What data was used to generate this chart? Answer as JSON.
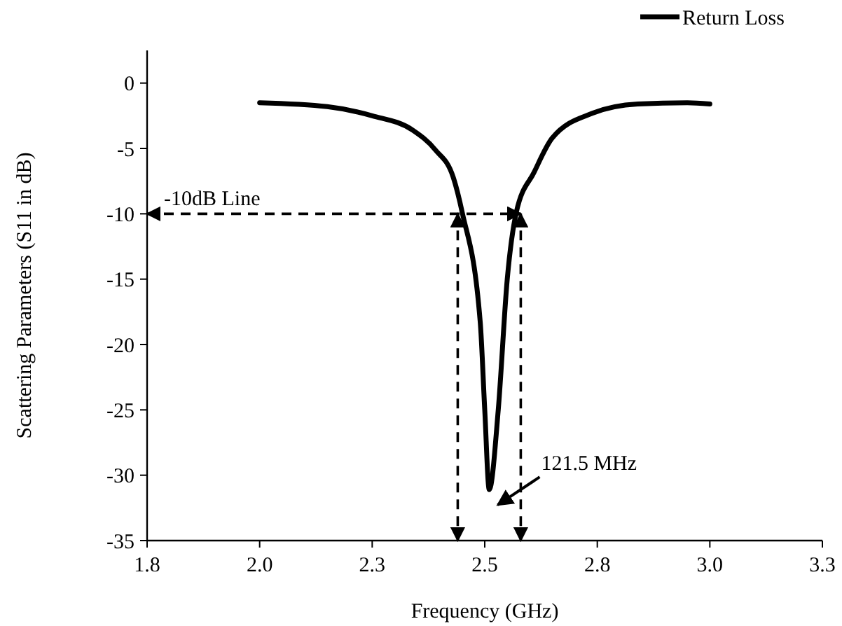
{
  "chart_data": {
    "type": "line",
    "xlabel": "Frequency (GHz)",
    "ylabel": "Scattering Parameters (S11 in dB)",
    "xlim": [
      1.75,
      3.25
    ],
    "xticks": [
      {
        "value": 1.75,
        "label": "1.8"
      },
      {
        "value": 2.0,
        "label": "2.0"
      },
      {
        "value": 2.25,
        "label": "2.3"
      },
      {
        "value": 2.5,
        "label": "2.5"
      },
      {
        "value": 2.75,
        "label": "2.8"
      },
      {
        "value": 3.0,
        "label": "3.0"
      },
      {
        "value": 3.25,
        "label": "3.3"
      }
    ],
    "ylim": [
      -35,
      2.5
    ],
    "yticks": [
      0,
      -5,
      -10,
      -15,
      -20,
      -25,
      -30,
      -35
    ],
    "series": [
      {
        "name": "Return Loss",
        "color": "#000000",
        "x": [
          2.0,
          2.15,
          2.25,
          2.34,
          2.39,
          2.43,
          2.45,
          2.49,
          2.5,
          2.51,
          2.53,
          2.55,
          2.57,
          2.61,
          2.65,
          2.74,
          2.84,
          2.95,
          3.0
        ],
        "values": [
          -1.5,
          -1.8,
          -2.5,
          -3.6,
          -5.1,
          -7.2,
          -9.9,
          -18.3,
          -25.0,
          -31.1,
          -25.0,
          -15.0,
          -9.9,
          -6.8,
          -4.2,
          -2.3,
          -1.6,
          -1.5,
          -1.6
        ]
      }
    ],
    "ref_lines": [
      {
        "axis": "y",
        "value": -10,
        "label": "-10dB Line",
        "line_style": "dashed",
        "color": "#000000"
      },
      {
        "axis": "x",
        "value": 2.44,
        "line_style": "dashed",
        "color": "#000000"
      },
      {
        "axis": "x",
        "value": 2.58,
        "line_style": "dashed",
        "color": "#000000"
      }
    ],
    "annotations": [
      "121.5 MHz"
    ],
    "legend": "top right",
    "marker": "none",
    "line_style": "solid",
    "grid": false
  }
}
